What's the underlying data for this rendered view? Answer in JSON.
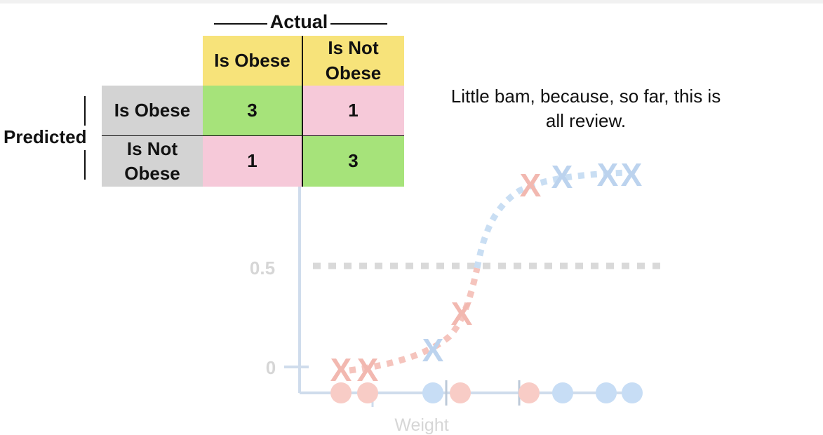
{
  "matrix": {
    "actual_label": "Actual",
    "predicted_label": "Predicted",
    "col_headers": [
      "Is Obese",
      "Is Not Obese"
    ],
    "row_headers": [
      "Is Obese",
      "Is Not Obese"
    ],
    "cells": [
      [
        "3",
        "1"
      ],
      [
        "1",
        "3"
      ]
    ]
  },
  "caption": "Little bam, because, so far, this is all review.",
  "plot": {
    "y_ticks": [
      "0.5",
      "0"
    ],
    "x_label": "Weight",
    "marker": "X"
  },
  "colors": {
    "header_yellow": "#f7e37a",
    "correct_green": "#a6e37a",
    "wrong_pink": "#f6c9d9",
    "row_header_gray": "#d3d3d3",
    "faded_red": "#f2b8b0",
    "faded_blue": "#bcd8f2",
    "axis": "#cfdcec"
  }
}
